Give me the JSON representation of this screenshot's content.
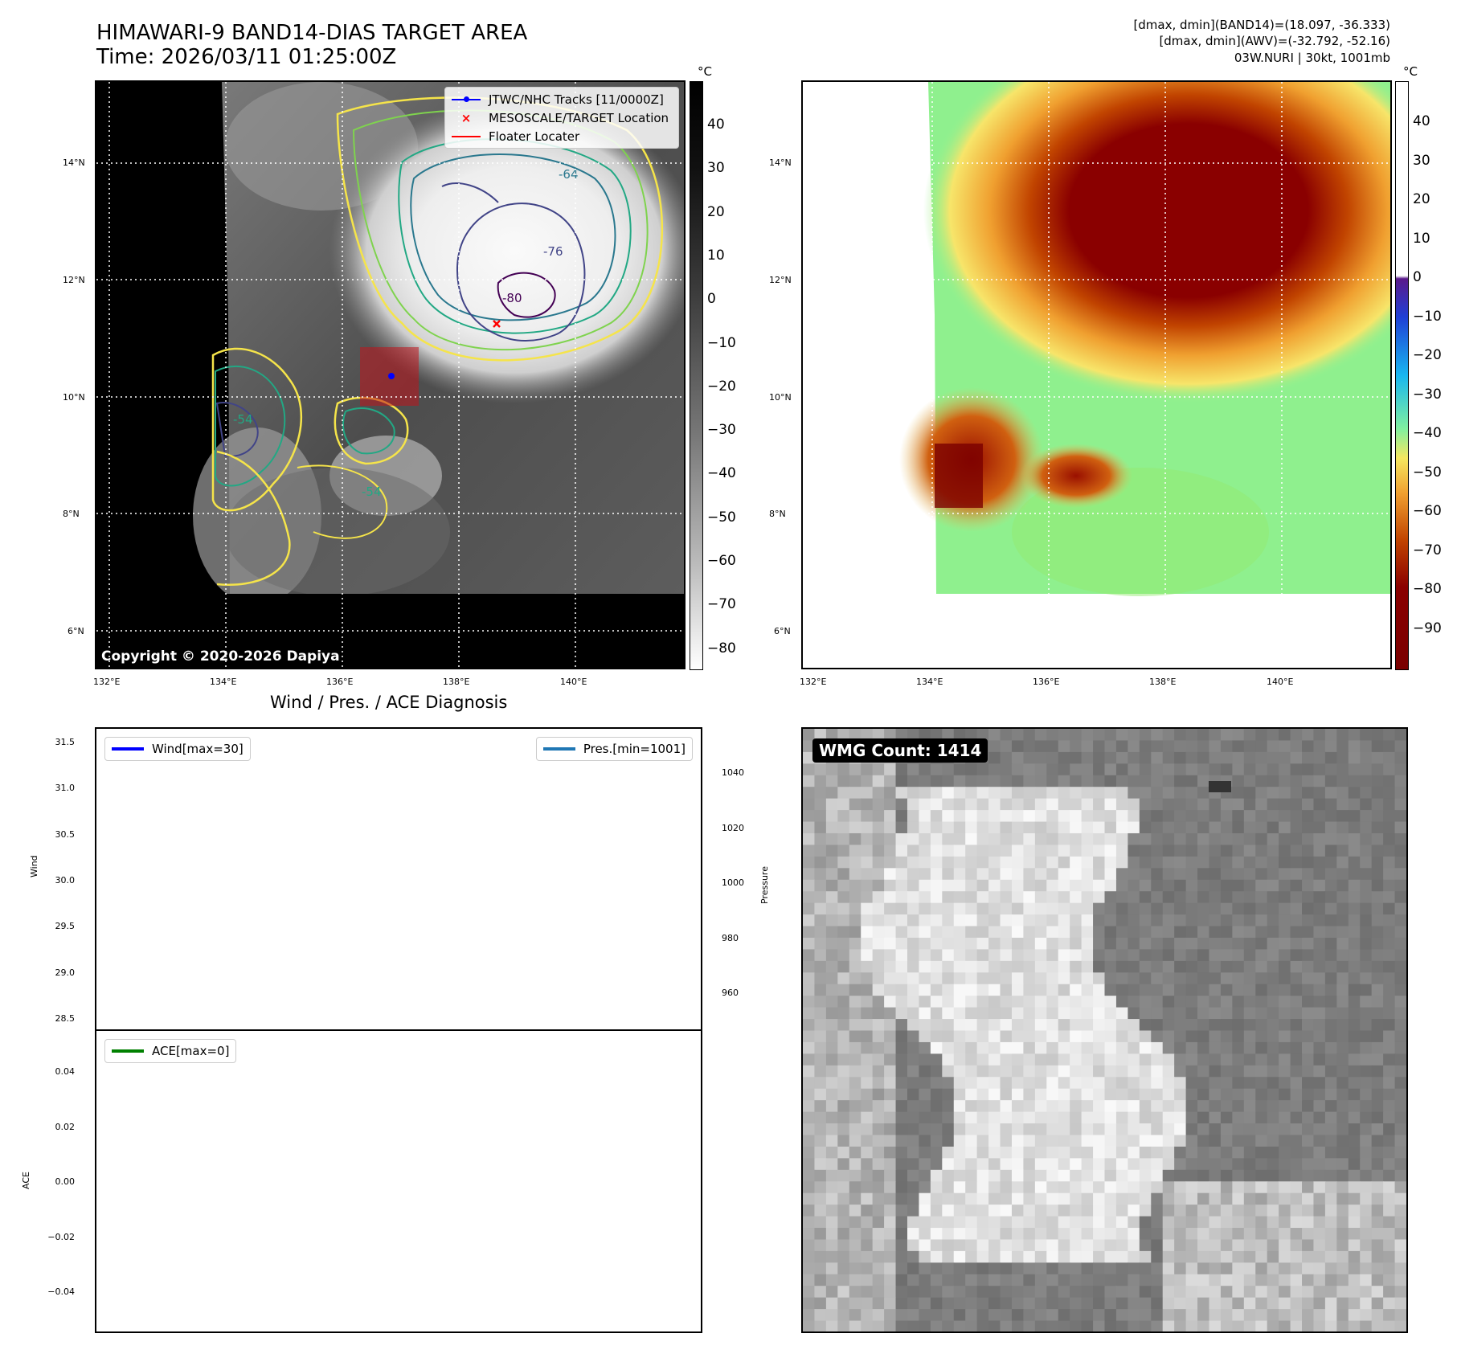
{
  "header": {
    "title_line1": "HIMAWARI-9 BAND14-DIAS TARGET AREA",
    "title_line2": "Time: 2026/03/11 01:25:00Z",
    "info_line1": "[dmax, dmin](BAND14)=(18.097, -36.333)",
    "info_line2": "[dmax, dmin](AWV)=(-32.792, -52.16)",
    "info_line3": "03W.NURI | 30kt, 1001mb"
  },
  "map_panel": {
    "lat_labels": [
      "14°N",
      "12°N",
      "10°N",
      "8°N",
      "6°N"
    ],
    "lon_labels": [
      "132°E",
      "134°E",
      "136°E",
      "138°E",
      "140°E"
    ],
    "copyright": "Copyright © 2020-2026 Dapiya",
    "legend": [
      {
        "label": "JTWC/NHC Tracks [11/0000Z]",
        "color": "#0000ff"
      },
      {
        "label": "MESOSCALE/TARGET Location",
        "color": "#ff0000"
      },
      {
        "label": "Floater Locater",
        "color": "#ff0000"
      }
    ],
    "contour_labels": [
      "-54",
      "-64",
      "-76",
      "-80"
    ],
    "colorbar_unit": "°C",
    "colorbar_ticks": [
      "40",
      "30",
      "20",
      "10",
      "0",
      "−10",
      "−20",
      "−30",
      "−40",
      "−50",
      "−60",
      "−70",
      "−80"
    ]
  },
  "awv_panel": {
    "lat_labels": [
      "14°N",
      "12°N",
      "10°N",
      "8°N",
      "6°N"
    ],
    "lon_labels": [
      "132°E",
      "134°E",
      "136°E",
      "138°E",
      "140°E"
    ],
    "colorbar_unit": "°C",
    "colorbar_ticks": [
      "40",
      "30",
      "20",
      "10",
      "0",
      "−10",
      "−20",
      "−30",
      "−40",
      "−50",
      "−60",
      "−70",
      "−80",
      "−90"
    ]
  },
  "diagnosis_panel": {
    "title": "Wind / Pres. / ACE Diagnosis",
    "wind_legend": "Wind[max=30]",
    "pres_legend": "Pres.[min=1001]",
    "ace_legend": "ACE[max=0]",
    "wind_ylabel": "Wind",
    "pres_ylabel": "Pressure",
    "ace_ylabel": "ACE",
    "colors": {
      "wind": "#0000ff",
      "pres": "#1f77b4",
      "ace": "#008000"
    }
  },
  "wmg_panel": {
    "badge": "WMG Count: 1414"
  },
  "chart_data": [
    {
      "type": "heatmap",
      "title": "HIMAWARI-9 BAND14-DIAS TARGET AREA",
      "subtitle": "Time: 2026/03/11 01:25:00Z",
      "x_ticks": [
        "132°E",
        "134°E",
        "136°E",
        "138°E",
        "140°E"
      ],
      "y_ticks": [
        "14°N",
        "12°N",
        "10°N",
        "8°N",
        "6°N"
      ],
      "colorbar_label": "°C",
      "colorbar_range": [
        -85,
        49
      ],
      "contour_levels": [
        -54,
        -64,
        -76,
        -80
      ],
      "track_point": [
        136.8,
        10.4
      ],
      "target_location": [
        138.6,
        11.3
      ]
    },
    {
      "type": "heatmap",
      "colorbar_label": "°C",
      "colorbar_range": [
        -100,
        49
      ],
      "x_ticks": [
        "132°E",
        "134°E",
        "136°E",
        "138°E",
        "140°E"
      ],
      "y_ticks": [
        "14°N",
        "12°N",
        "10°N",
        "8°N",
        "6°N"
      ]
    },
    {
      "type": "line",
      "title": "Wind / Pres. / ACE Diagnosis",
      "series": [
        {
          "name": "Wind[max=30]",
          "values": []
        },
        {
          "name": "Pres.[min=1001]",
          "values": []
        }
      ],
      "wind_ticks": [
        "31.5",
        "31.0",
        "30.5",
        "30.0",
        "29.5",
        "29.0",
        "28.5"
      ],
      "pres_ticks": [
        "1040",
        "1020",
        "1000",
        "980",
        "960"
      ],
      "ylabel": "Wind",
      "y2label": "Pressure"
    },
    {
      "type": "line",
      "series": [
        {
          "name": "ACE[max=0]",
          "values": []
        }
      ],
      "ace_ticks": [
        "0.04",
        "0.02",
        "0.00",
        "−0.02",
        "−0.04"
      ],
      "ylabel": "ACE"
    }
  ]
}
